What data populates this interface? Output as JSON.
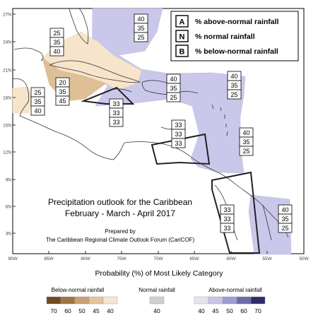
{
  "map": {
    "title_line1": "Precipitation outlook for the Caribbean",
    "title_line2": "February - March - April 2017",
    "prepared_line1": "Prepared by",
    "prepared_line2": "The Caribbean Regional Climate Outlook Forum (CariCOF)",
    "lat_ticks": [
      "27N",
      "24N",
      "21N",
      "18N",
      "15N",
      "12N",
      "9N",
      "6N",
      "3N"
    ],
    "lon_ticks": [
      "90W",
      "85W",
      "80W",
      "75W",
      "70W",
      "65W",
      "60W",
      "55W",
      "50W"
    ],
    "key": [
      {
        "letter": "A",
        "text": "% above-normal rainfall"
      },
      {
        "letter": "N",
        "text": "% normal rainfall"
      },
      {
        "letter": "B",
        "text": "% below-normal rainfall"
      }
    ],
    "boxes": [
      {
        "id": "bahamas",
        "values": [
          "40",
          "35",
          "25"
        ]
      },
      {
        "id": "florida-cuba-west",
        "values": [
          "25",
          "35",
          "40"
        ]
      },
      {
        "id": "cuba-central",
        "values": [
          "20",
          "35",
          "45"
        ]
      },
      {
        "id": "belize",
        "values": [
          "25",
          "35",
          "40"
        ]
      },
      {
        "id": "jamaica-south",
        "values": [
          "33",
          "33",
          "33"
        ]
      },
      {
        "id": "hispaniola",
        "values": [
          "40",
          "35",
          "25"
        ]
      },
      {
        "id": "leeward",
        "values": [
          "40",
          "35",
          "25"
        ]
      },
      {
        "id": "abc-islands",
        "values": [
          "33",
          "33",
          "33"
        ]
      },
      {
        "id": "windward",
        "values": [
          "40",
          "35",
          "25"
        ]
      },
      {
        "id": "guyana",
        "values": [
          "33",
          "33",
          "33"
        ]
      },
      {
        "id": "suriname",
        "values": [
          "40",
          "35",
          "25"
        ]
      }
    ]
  },
  "legend": {
    "title": "Probability (%) of Most Likely Category",
    "below": {
      "title": "Below-normal rainfall",
      "values": [
        "70",
        "60",
        "50",
        "45",
        "40"
      ],
      "colors": [
        "#6e4a1e",
        "#a07440",
        "#c9a070",
        "#e3c59c",
        "#f7e6cf"
      ]
    },
    "normal": {
      "title": "Normal rainfall",
      "values": [
        "40"
      ],
      "colors": [
        "#cfcfcf"
      ]
    },
    "above": {
      "title": "Above-normal rainfall",
      "values": [
        "40",
        "45",
        "50",
        "60",
        "70"
      ],
      "colors": [
        "#e4e3f3",
        "#c7c6e8",
        "#9e9cd3",
        "#6e6aa9",
        "#2f2d66"
      ]
    }
  }
}
